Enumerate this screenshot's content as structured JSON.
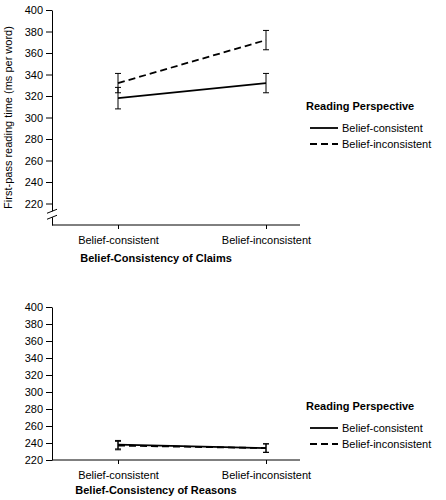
{
  "chart_data": [
    {
      "type": "line",
      "y_label": "First-pass reading time (ms per word)",
      "x_label": "Belief-Consistency of Claims",
      "categories": [
        "Belief-consistent",
        "Belief-inconsistent"
      ],
      "legend_title": "Reading Perspective",
      "legend": "right",
      "grid": false,
      "ylim": [
        200,
        400
      ],
      "yticks": [
        220,
        240,
        260,
        280,
        300,
        320,
        340,
        360,
        380,
        400
      ],
      "series": [
        {
          "name": "Belief-consistent",
          "color": "#000000",
          "line_style": "solid",
          "values": [
            318,
            332
          ],
          "errors": [
            10,
            9
          ]
        },
        {
          "name": "Belief-inconsistent",
          "color": "#000000",
          "line_style": "dashed",
          "values": [
            332,
            372
          ],
          "errors": [
            9,
            9
          ]
        }
      ]
    },
    {
      "type": "line",
      "x_label": "Belief-Consistency of Reasons",
      "categories": [
        "Belief-consistent",
        "Belief-inconsistent"
      ],
      "legend_title": "Reading Perspective",
      "legend": "right",
      "grid": false,
      "ylim": [
        220,
        400
      ],
      "yticks": [
        220,
        240,
        260,
        280,
        300,
        320,
        340,
        360,
        380,
        400
      ],
      "series": [
        {
          "name": "Belief-consistent",
          "color": "#000000",
          "line_style": "solid",
          "values": [
            238,
            234
          ],
          "errors": [
            5,
            5
          ]
        },
        {
          "name": "Belief-inconsistent",
          "color": "#000000",
          "line_style": "dashed",
          "values": [
            237,
            234
          ],
          "errors": [
            5,
            5
          ]
        }
      ]
    }
  ]
}
